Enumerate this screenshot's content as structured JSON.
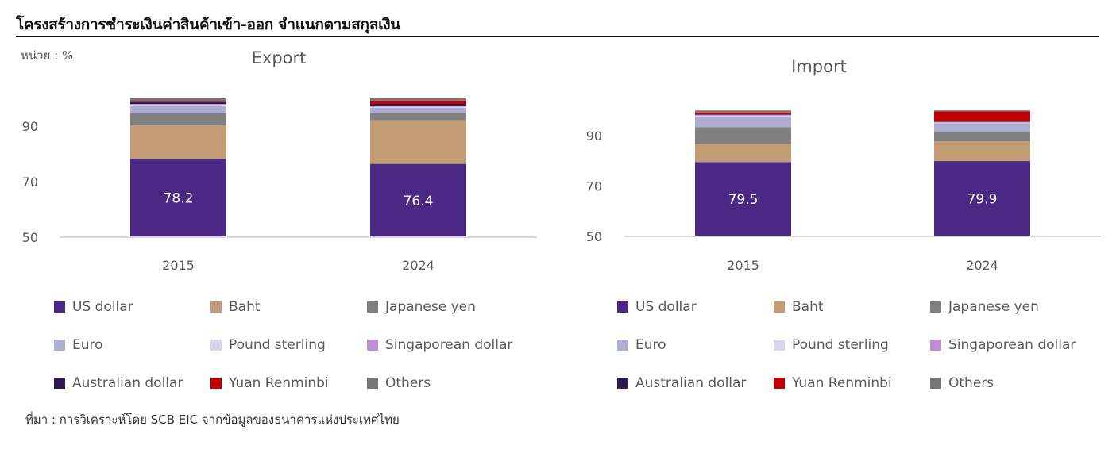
{
  "header": {
    "title": "โครงสร้างการชำระเงินค่าสินค้าเข้า-ออก  จำแนกตามสกุลเงิน",
    "unit": "หน่วย : %"
  },
  "source": "ที่มา : การวิเคราะห์โดย  SCB EIC จากข้อมูลของธนาคารแห่งประเทศไทย",
  "legend": [
    {
      "name": "US dollar",
      "color": "#4B2884"
    },
    {
      "name": "Baht",
      "color": "#C39B74"
    },
    {
      "name": "Japanese yen",
      "color": "#808080"
    },
    {
      "name": "Euro",
      "color": "#ADADD2"
    },
    {
      "name": "Pound sterling",
      "color": "#D9D5EA"
    },
    {
      "name": "Singaporean dollar",
      "color": "#BF8FD6"
    },
    {
      "name": "Australian dollar",
      "color": "#2E1A52"
    },
    {
      "name": "Yuan Renminbi",
      "color": "#C00000"
    },
    {
      "name": "Others",
      "color": "#767676"
    }
  ],
  "chart_data": [
    {
      "type": "bar",
      "stacked": true,
      "title": "Export",
      "categories": [
        "2015",
        "2024"
      ],
      "xlabel": "",
      "ylabel": "%",
      "ylim": [
        50,
        100
      ],
      "yticks": [
        "50",
        "70",
        "90"
      ],
      "grid": false,
      "legend_position": "bottom",
      "data_labels": [
        "78.2",
        "76.4"
      ],
      "series": [
        {
          "name": "US dollar",
          "values": [
            78.2,
            76.4
          ]
        },
        {
          "name": "Baht",
          "values": [
            12.0,
            15.7
          ]
        },
        {
          "name": "Japanese yen",
          "values": [
            4.4,
            2.5
          ]
        },
        {
          "name": "Euro",
          "values": [
            2.8,
            2.0
          ]
        },
        {
          "name": "Pound sterling",
          "values": [
            0.3,
            0.3
          ]
        },
        {
          "name": "Singaporean dollar",
          "values": [
            0.3,
            0.3
          ]
        },
        {
          "name": "Australian dollar",
          "values": [
            0.8,
            0.8
          ]
        },
        {
          "name": "Yuan Renminbi",
          "values": [
            0.2,
            1.2
          ]
        },
        {
          "name": "Others",
          "values": [
            1.0,
            0.8
          ]
        }
      ]
    },
    {
      "type": "bar",
      "stacked": true,
      "title": "Import",
      "categories": [
        "2015",
        "2024"
      ],
      "xlabel": "",
      "ylabel": "%",
      "ylim": [
        50,
        100
      ],
      "yticks": [
        "50",
        "70",
        "90"
      ],
      "grid": false,
      "legend_position": "bottom",
      "data_labels": [
        "79.5",
        "79.9"
      ],
      "series": [
        {
          "name": "US dollar",
          "values": [
            79.5,
            79.9
          ]
        },
        {
          "name": "Baht",
          "values": [
            7.2,
            7.9
          ]
        },
        {
          "name": "Japanese yen",
          "values": [
            6.6,
            3.5
          ]
        },
        {
          "name": "Euro",
          "values": [
            4.2,
            3.6
          ]
        },
        {
          "name": "Pound sterling",
          "values": [
            0.4,
            0.3
          ]
        },
        {
          "name": "Singaporean dollar",
          "values": [
            0.4,
            0.3
          ]
        },
        {
          "name": "Australian dollar",
          "values": [
            0.2,
            0.2
          ]
        },
        {
          "name": "Yuan Renminbi",
          "values": [
            0.7,
            3.9
          ]
        },
        {
          "name": "Others",
          "values": [
            0.8,
            0.4
          ]
        }
      ]
    }
  ]
}
